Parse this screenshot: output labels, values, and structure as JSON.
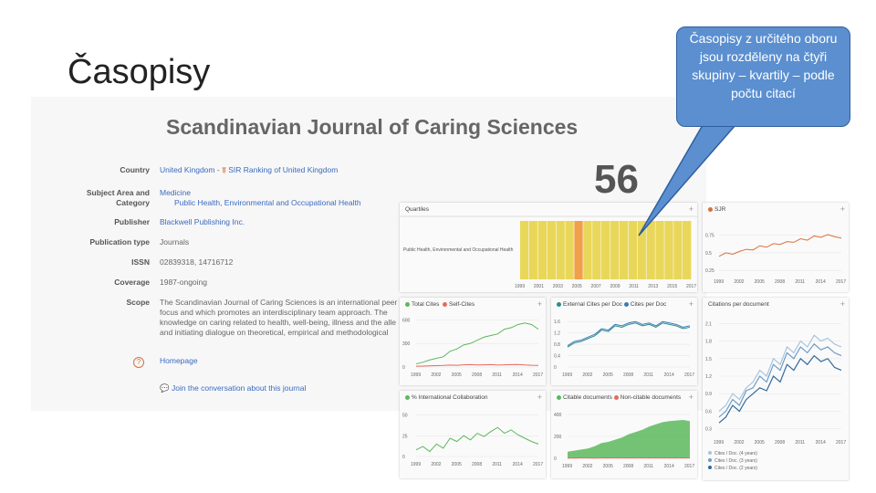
{
  "slide": {
    "title": "Časopisy",
    "callout": "Časopisy z určitého oboru jsou rozděleny na čtyři skupiny – kvartily – podle počtu citací"
  },
  "journal": {
    "title": "Scandinavian Journal of Caring Sciences",
    "h_index": "56",
    "rows": {
      "country": {
        "label": "Country",
        "value": "United Kingdom",
        "sep": "-",
        "link2": "SIR Ranking of United Kingdom"
      },
      "subject": {
        "label1": "Subject Area and",
        "label2": "Category",
        "value": "Medicine",
        "sub": "Public Health, Environmental and Occupational Health"
      },
      "publisher": {
        "label": "Publisher",
        "value": "Blackwell Publishing Inc."
      },
      "pubtype": {
        "label": "Publication type",
        "value": "Journals"
      },
      "issn": {
        "label": "ISSN",
        "value": "02839318, 14716712"
      },
      "coverage": {
        "label": "Coverage",
        "value": "1987-ongoing"
      },
      "scope": {
        "label": "Scope",
        "value": "The Scandinavian Journal of Caring Sciences is an international peer focus and which promotes an interdisciplinary team approach. The knowledge on caring related to health, well-being, illness and the alle and initiating dialogue on theoretical, empirical and methodological demonstrate respect for human dignity and accountability to society"
      },
      "homepage": {
        "value": "Homepage"
      },
      "conversation": {
        "value": "Join the conversation about this journal"
      }
    }
  },
  "colors": {
    "quartile_yellow": "#e9d75a",
    "quartile_orange": "#f0a04b",
    "green": "#5cb85c",
    "red": "#e46b5d",
    "teal": "#2a8c8c",
    "blue": "#3d7ab8",
    "sjr": "#d9703b"
  },
  "panels": {
    "quartiles": {
      "title": "Quartiles",
      "category": "Public Health, Environmental and Occupational Health"
    },
    "sjr": {
      "title": "SJR"
    },
    "cites": {
      "legend1": "Total Cites",
      "legend2": "Self-Cites"
    },
    "extcites": {
      "legend1": "External Cites per Doc",
      "legend2": "Cites per Doc"
    },
    "citesdoc": {
      "title": "Citations per document",
      "legend": [
        "Cites / Doc. (4 years)",
        "Cites / Doc. (3 years)",
        "Cites / Doc. (2 years)"
      ]
    },
    "intl": {
      "legend": "% International Collaboration"
    },
    "citable": {
      "legend1": "Citable documents",
      "legend2": "Non-citable documents"
    }
  },
  "chart_data": [
    {
      "type": "heatmap",
      "title": "Quartiles",
      "xlabel": "",
      "x": [
        "1999",
        "2001",
        "2003",
        "2005",
        "2007",
        "2009",
        "2011",
        "2013",
        "2015",
        "2017"
      ],
      "x_ticks": [
        "1999",
        "2001",
        "2003",
        "2005",
        "2007",
        "2009",
        "2011",
        "2013",
        "2015",
        "2017"
      ],
      "quartiles": [
        "Q2",
        "Q2",
        "Q2",
        "Q2",
        "Q2",
        "Q2",
        "Q1",
        "Q2",
        "Q2",
        "Q2",
        "Q2",
        "Q2",
        "Q2",
        "Q2",
        "Q2",
        "Q2",
        "Q2",
        "Q2",
        "Q2"
      ]
    },
    {
      "type": "line",
      "title": "SJR",
      "x_ticks": [
        "1999",
        "2002",
        "2005",
        "2008",
        "2011",
        "2014",
        "2017"
      ],
      "y_ticks": [
        "0.75",
        "0.5",
        "0.25"
      ],
      "ylim": [
        0.2,
        0.85
      ],
      "series": [
        {
          "name": "SJR",
          "values": [
            0.45,
            0.5,
            0.48,
            0.52,
            0.55,
            0.54,
            0.6,
            0.58,
            0.63,
            0.62,
            0.66,
            0.65,
            0.7,
            0.68,
            0.74,
            0.72,
            0.76,
            0.73,
            0.71
          ]
        }
      ]
    },
    {
      "type": "line",
      "title": "Total Cites / Self-Cites",
      "x_ticks": [
        "1999",
        "2002",
        "2005",
        "2008",
        "2011",
        "2014",
        "2017"
      ],
      "y_ticks": [
        "600",
        "300",
        "0"
      ],
      "ylim": [
        0,
        650
      ],
      "series": [
        {
          "name": "Total Cites",
          "values": [
            40,
            60,
            90,
            110,
            130,
            200,
            230,
            280,
            300,
            340,
            380,
            400,
            420,
            480,
            500,
            540,
            560,
            540,
            480
          ]
        },
        {
          "name": "Self-Cites",
          "values": [
            10,
            12,
            15,
            18,
            20,
            25,
            22,
            28,
            30,
            26,
            28,
            30,
            25,
            28,
            30,
            32,
            26,
            22,
            20
          ]
        }
      ]
    },
    {
      "type": "line",
      "title": "External Cites per Doc / Cites per Doc",
      "x_ticks": [
        "1999",
        "2002",
        "2005",
        "2008",
        "2011",
        "2014",
        "2017"
      ],
      "y_ticks": [
        "1.6",
        "1.2",
        "0.8",
        "0.4",
        "0"
      ],
      "ylim": [
        0,
        1.8
      ],
      "series": [
        {
          "name": "External Cites per Doc",
          "values": [
            0.7,
            0.85,
            0.9,
            1.0,
            1.1,
            1.3,
            1.25,
            1.45,
            1.4,
            1.5,
            1.55,
            1.45,
            1.5,
            1.4,
            1.55,
            1.5,
            1.45,
            1.35,
            1.4
          ]
        },
        {
          "name": "Cites per Doc",
          "values": [
            0.75,
            0.9,
            0.95,
            1.05,
            1.15,
            1.35,
            1.3,
            1.5,
            1.45,
            1.55,
            1.6,
            1.5,
            1.55,
            1.45,
            1.6,
            1.55,
            1.5,
            1.4,
            1.45
          ]
        }
      ]
    },
    {
      "type": "line",
      "title": "Citations per document",
      "x_ticks": [
        "1999",
        "2002",
        "2005",
        "2008",
        "2011",
        "2014",
        "2017"
      ],
      "y_ticks": [
        "2.1",
        "1.8",
        "1.5",
        "1.2",
        "0.9",
        "0.6",
        "0.3"
      ],
      "ylim": [
        0.2,
        2.2
      ],
      "series": [
        {
          "name": "Cites / Doc. (4 years)",
          "values": [
            0.6,
            0.7,
            0.9,
            0.8,
            1.0,
            1.1,
            1.3,
            1.2,
            1.5,
            1.4,
            1.7,
            1.6,
            1.8,
            1.7,
            1.9,
            1.8,
            1.85,
            1.75,
            1.7
          ]
        },
        {
          "name": "Cites / Doc. (3 years)",
          "values": [
            0.5,
            0.6,
            0.8,
            0.7,
            0.95,
            1.0,
            1.2,
            1.1,
            1.4,
            1.3,
            1.6,
            1.5,
            1.7,
            1.6,
            1.75,
            1.65,
            1.7,
            1.6,
            1.55
          ]
        },
        {
          "name": "Cites / Doc. (2 years)",
          "values": [
            0.4,
            0.5,
            0.7,
            0.6,
            0.8,
            0.9,
            1.0,
            0.95,
            1.2,
            1.1,
            1.4,
            1.3,
            1.5,
            1.4,
            1.55,
            1.45,
            1.5,
            1.35,
            1.3
          ]
        }
      ]
    },
    {
      "type": "line",
      "title": "% International Collaboration",
      "x_ticks": [
        "1999",
        "2002",
        "2005",
        "2008",
        "2011",
        "2014",
        "2017"
      ],
      "y_ticks": [
        "50",
        "25",
        "0"
      ],
      "ylim": [
        0,
        55
      ],
      "series": [
        {
          "name": "% International Collaboration",
          "values": [
            8,
            12,
            6,
            15,
            10,
            22,
            18,
            25,
            20,
            28,
            24,
            30,
            35,
            28,
            32,
            26,
            22,
            18,
            15
          ]
        }
      ]
    },
    {
      "type": "area",
      "title": "Citable documents / Non-citable documents",
      "x_ticks": [
        "1999",
        "2002",
        "2005",
        "2008",
        "2011",
        "2014",
        "2017"
      ],
      "y_ticks": [
        "400",
        "200",
        "0"
      ],
      "ylim": [
        0,
        450
      ],
      "series": [
        {
          "name": "Citable documents",
          "values": [
            60,
            70,
            80,
            90,
            110,
            140,
            150,
            170,
            190,
            220,
            240,
            260,
            290,
            310,
            330,
            340,
            345,
            350,
            340
          ]
        },
        {
          "name": "Non-citable documents",
          "values": [
            2,
            2,
            3,
            3,
            2,
            3,
            4,
            3,
            3,
            4,
            3,
            3,
            4,
            3,
            3,
            4,
            3,
            3,
            3
          ]
        }
      ]
    }
  ]
}
